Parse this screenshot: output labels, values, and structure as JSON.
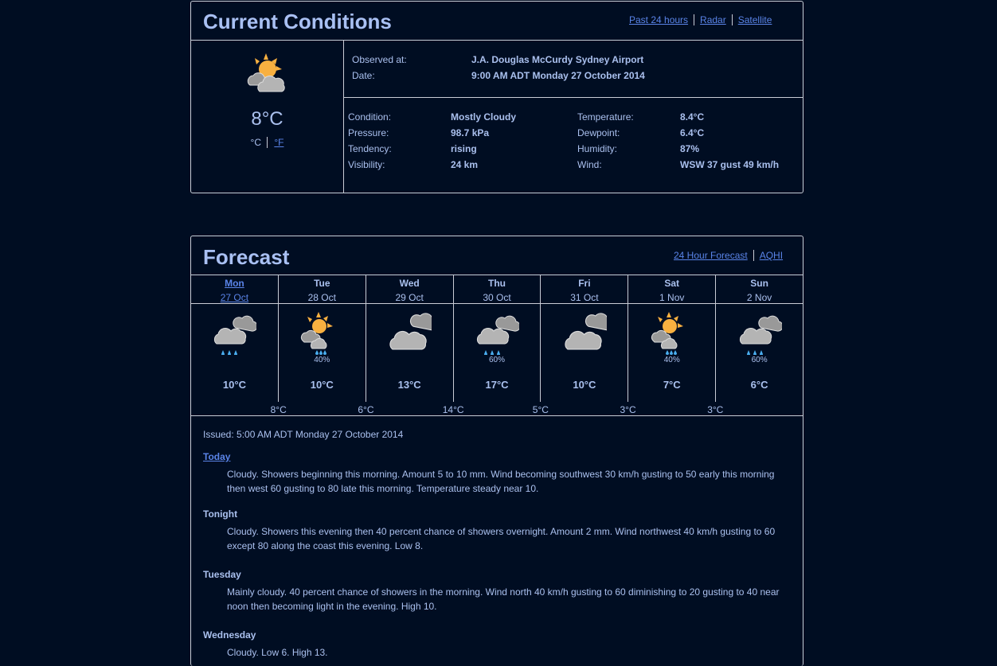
{
  "current": {
    "title": "Current Conditions",
    "links": [
      "Past 24 hours",
      "Radar",
      "Satellite"
    ],
    "icon": "sun-behind-clouds-icon",
    "temp": "8°C",
    "unit_c": "°C",
    "unit_f": "°F",
    "observed_label": "Observed at:",
    "observed_value": "J.A. Douglas McCurdy Sydney Airport",
    "date_label": "Date:",
    "date_value": "9:00 AM ADT Monday 27 October 2014",
    "details": [
      {
        "label": "Condition:",
        "value": "Mostly Cloudy"
      },
      {
        "label": "Pressure:",
        "value": "98.7 kPa"
      },
      {
        "label": "Tendency:",
        "value": "rising"
      },
      {
        "label": "Visibility:",
        "value": "24 km"
      },
      {
        "label": "Temperature:",
        "value": "8.4°C"
      },
      {
        "label": "Dewpoint:",
        "value": "6.4°C"
      },
      {
        "label": "Humidity:",
        "value": "87%"
      },
      {
        "label": "Wind:",
        "value": "WSW 37 gust 49 km/h"
      }
    ]
  },
  "forecast": {
    "title": "Forecast",
    "links": [
      "24 Hour Forecast",
      "AQHI"
    ],
    "days": [
      {
        "name": "Mon",
        "date": "27 Oct",
        "icon": "showers",
        "pop": "",
        "high": "10°C"
      },
      {
        "name": "Tue",
        "date": "28 Oct",
        "icon": "sun-showers",
        "pop": "40%",
        "high": "10°C"
      },
      {
        "name": "Wed",
        "date": "29 Oct",
        "icon": "cloudy",
        "pop": "",
        "high": "13°C"
      },
      {
        "name": "Thu",
        "date": "30 Oct",
        "icon": "showers",
        "pop": "60%",
        "high": "17°C"
      },
      {
        "name": "Fri",
        "date": "31 Oct",
        "icon": "cloudy",
        "pop": "",
        "high": "10°C"
      },
      {
        "name": "Sat",
        "date": "1 Nov",
        "icon": "sun-showers",
        "pop": "40%",
        "high": "7°C"
      },
      {
        "name": "Sun",
        "date": "2 Nov",
        "icon": "showers",
        "pop": "60%",
        "high": "6°C"
      }
    ],
    "lows": [
      "8°C",
      "6°C",
      "14°C",
      "5°C",
      "3°C",
      "3°C"
    ],
    "issued": "Issued: 5:00 AM ADT Monday 27 October 2014",
    "periods": [
      {
        "name": "Today",
        "text": "Cloudy. Showers beginning this morning. Amount 5 to 10 mm. Wind becoming southwest 30 km/h gusting to 50 early this morning then west 60 gusting to 80 late this morning. Temperature steady near 10."
      },
      {
        "name": "Tonight",
        "text": "Cloudy. Showers this evening then 40 percent chance of showers overnight. Amount 2 mm. Wind northwest 40 km/h gusting to 60 except 80 along the coast this evening. Low 8."
      },
      {
        "name": "Tuesday",
        "text": "Mainly cloudy. 40 percent chance of showers in the morning. Wind north 40 km/h gusting to 60 diminishing to 20 gusting to 40 near noon then becoming light in the evening. High 10."
      },
      {
        "name": "Wednesday",
        "text": "Cloudy. Low 6. High 13."
      }
    ]
  },
  "colors": {
    "background": "#000d22",
    "text": "#aac0ee",
    "link": "#5a84e8",
    "sun": "#f8b040",
    "cloud": "#b4b4b4",
    "rain": "#4aaef0"
  }
}
